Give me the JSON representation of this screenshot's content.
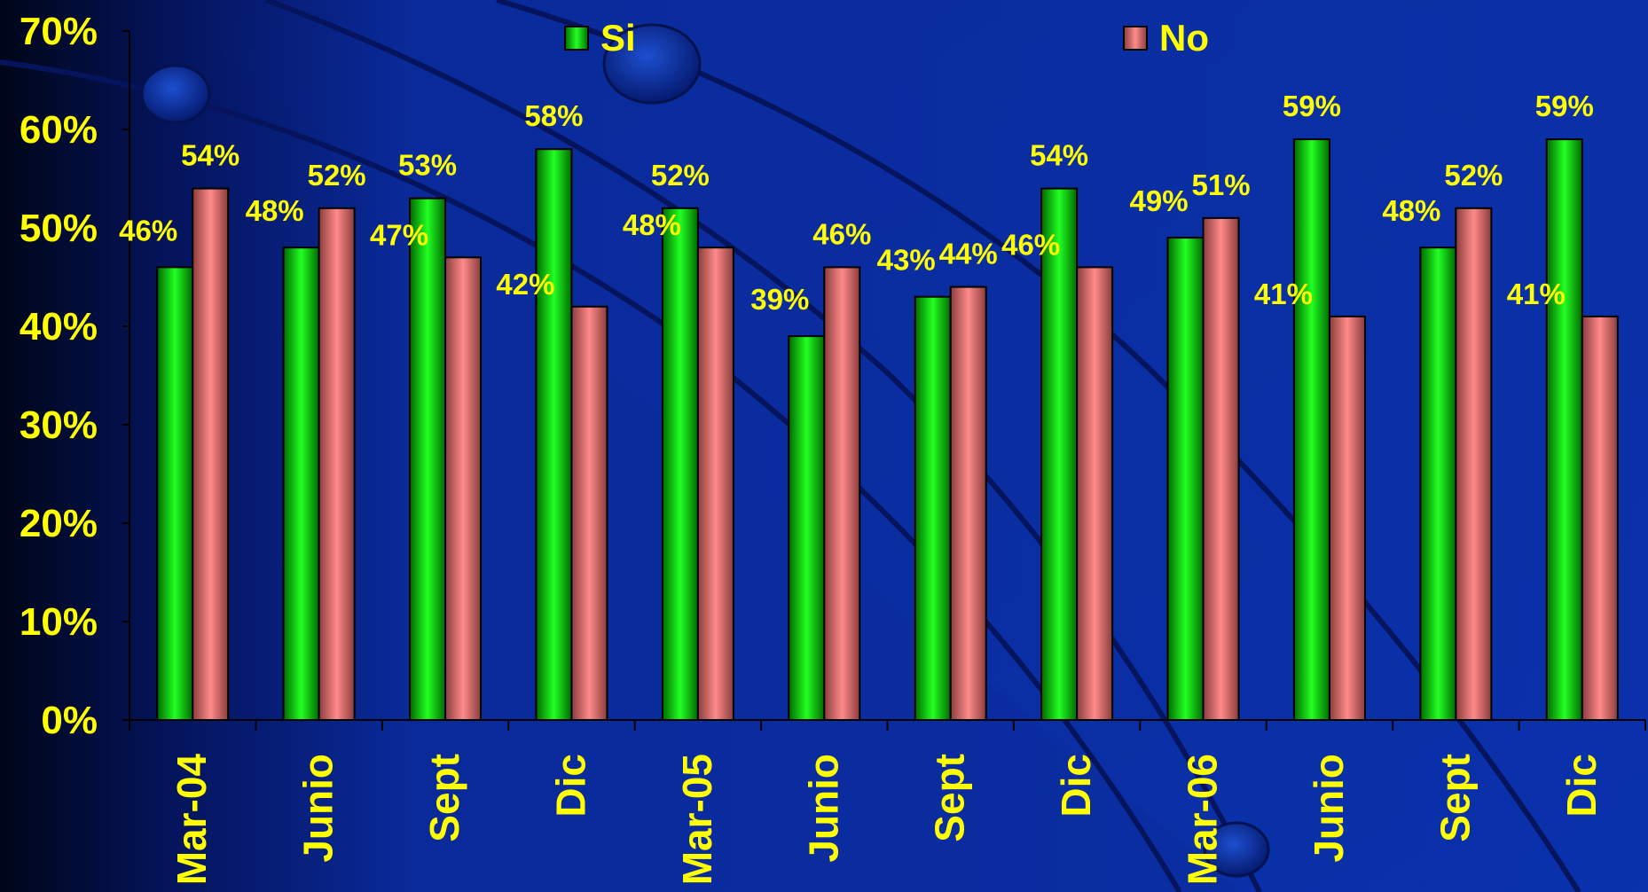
{
  "colors": {
    "text_yellow": "#ffff00",
    "background_blue": "#0a2a9a",
    "background_dark": "#000820",
    "si_green": "#00d000",
    "no_pink": "#ff8080",
    "axis": "#000000"
  },
  "chart_data": {
    "type": "bar",
    "title": "",
    "xlabel": "",
    "ylabel": "",
    "ylim": [
      0,
      70
    ],
    "y_ticks": [
      0,
      10,
      20,
      30,
      40,
      50,
      60,
      70
    ],
    "y_tick_labels": [
      "0%",
      "10%",
      "20%",
      "30%",
      "40%",
      "50%",
      "60%",
      "70%"
    ],
    "grid": false,
    "legend_position": "top",
    "categories": [
      "Mar-04",
      "Junio",
      "Sept",
      "Dic",
      "Mar-05",
      "Junio",
      "Sept",
      "Dic",
      "Mar-06",
      "Junio",
      "Sept",
      "Dic"
    ],
    "series": [
      {
        "name": "Si",
        "color": "#00d000",
        "values": [
          46,
          48,
          53,
          58,
          52,
          39,
          43,
          54,
          49,
          59,
          48,
          59
        ],
        "labels": [
          "46%",
          "48%",
          "53%",
          "58%",
          "52%",
          "39%",
          "43%",
          "54%",
          "49%",
          "59%",
          "48%",
          "59%"
        ]
      },
      {
        "name": "No",
        "color": "#ff8080",
        "values": [
          54,
          52,
          47,
          42,
          48,
          46,
          44,
          46,
          51,
          41,
          52,
          41
        ],
        "labels": [
          "54%",
          "52%",
          "47%",
          "42%",
          "48%",
          "46%",
          "44%",
          "46%",
          "51%",
          "41%",
          "52%",
          "41%"
        ]
      }
    ]
  }
}
